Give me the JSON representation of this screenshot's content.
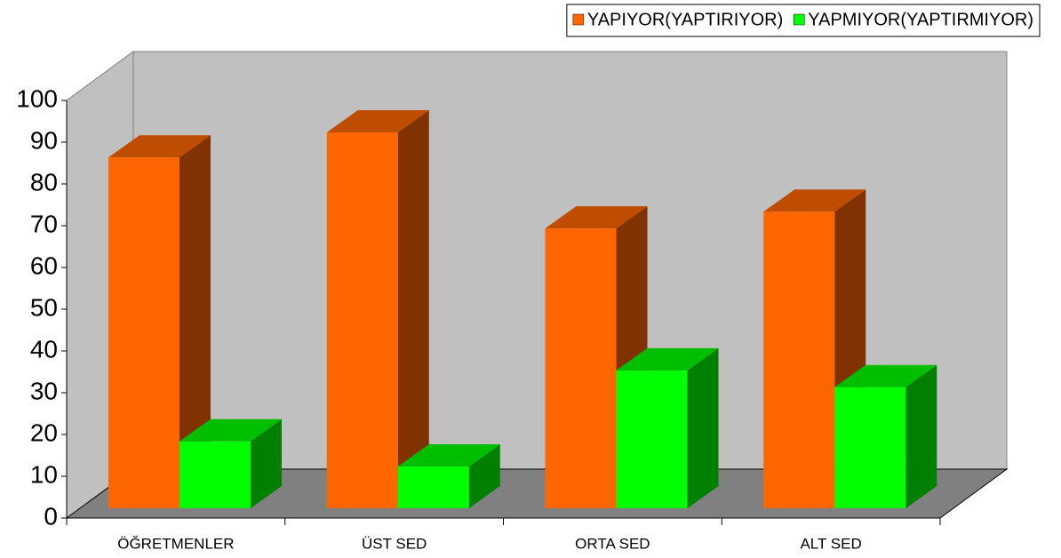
{
  "chart_data": {
    "type": "bar3d",
    "categories": [
      "ÖĞRETMENLER",
      "ÜST SED",
      "ORTA SED",
      "ALT SED"
    ],
    "series": [
      {
        "name": "YAPIYOR(YAPTIRIYOR)",
        "color": "#ff6600",
        "values": [
          84,
          90,
          67,
          71
        ]
      },
      {
        "name": "YAPMIYOR(YAPTIRMIYOR)",
        "color": "#00ff00",
        "values": [
          16,
          10,
          33,
          29
        ]
      }
    ],
    "ylim": [
      0,
      100
    ],
    "yticks": [
      0,
      10,
      20,
      30,
      40,
      50,
      60,
      70,
      80,
      90,
      100
    ],
    "legend": "top-right"
  }
}
